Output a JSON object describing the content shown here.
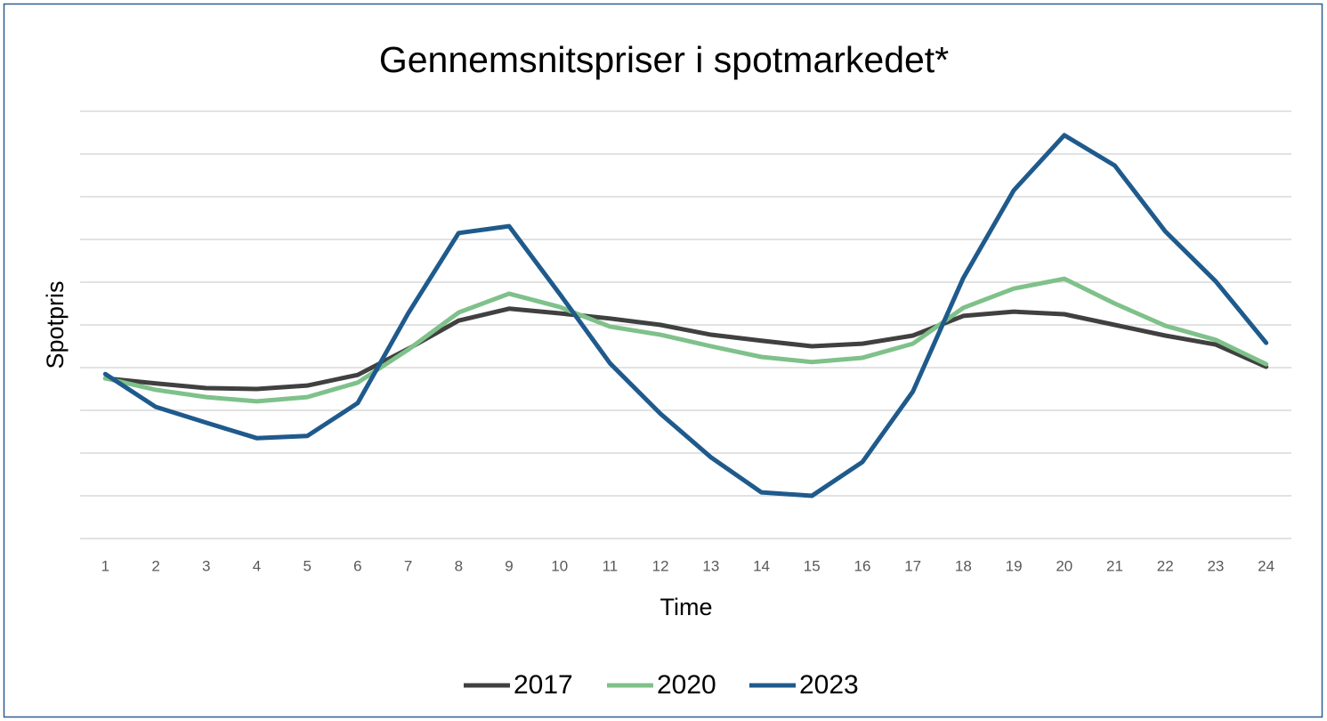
{
  "chart_data": {
    "type": "line",
    "title": "Gennemsnitspriser i spotmarkedet*",
    "x_label": "Time",
    "y_label": "Spotpris",
    "categories": [
      1,
      2,
      3,
      4,
      5,
      6,
      7,
      8,
      9,
      10,
      11,
      12,
      13,
      14,
      15,
      16,
      17,
      18,
      19,
      20,
      21,
      22,
      23,
      24
    ],
    "ylim": [
      0,
      10
    ],
    "yticks": [
      0,
      1,
      2,
      3,
      4,
      5,
      6,
      7,
      8,
      9,
      10
    ],
    "grid": true,
    "legend": "bottom",
    "series": [
      {
        "name": "2017",
        "color": "#404040",
        "values": [
          3.75,
          3.63,
          3.52,
          3.5,
          3.58,
          3.83,
          4.44,
          5.1,
          5.38,
          5.27,
          5.15,
          5.0,
          4.77,
          4.63,
          4.5,
          4.56,
          4.75,
          5.21,
          5.31,
          5.25,
          5.0,
          4.75,
          4.54,
          4.02
        ]
      },
      {
        "name": "2020",
        "color": "#7fc18a",
        "values": [
          3.75,
          3.48,
          3.31,
          3.21,
          3.31,
          3.65,
          4.42,
          5.29,
          5.73,
          5.42,
          4.96,
          4.77,
          4.5,
          4.25,
          4.13,
          4.23,
          4.56,
          5.4,
          5.85,
          6.08,
          5.5,
          4.98,
          4.65,
          4.08
        ]
      },
      {
        "name": "2023",
        "color": "#1f5a8c",
        "values": [
          3.85,
          3.08,
          2.71,
          2.35,
          2.4,
          3.17,
          5.27,
          7.15,
          7.31,
          5.73,
          4.1,
          2.92,
          1.9,
          1.08,
          1.0,
          1.79,
          3.44,
          6.1,
          8.15,
          9.44,
          8.73,
          7.19,
          6.02,
          4.58
        ]
      }
    ]
  }
}
